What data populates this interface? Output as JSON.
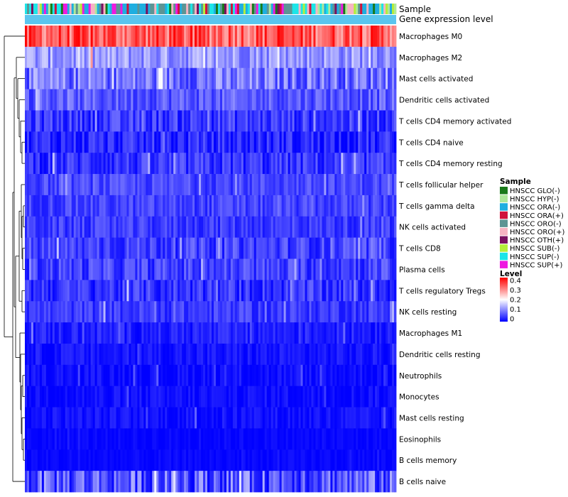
{
  "chart_data": {
    "type": "heatmap",
    "annotation_labels": [
      "Sample",
      "Gene expression level"
    ],
    "rows": [
      {
        "name": "Macrophages M0",
        "mean": 0.33,
        "spread": 0.07
      },
      {
        "name": "Macrophages M2",
        "mean": 0.12,
        "spread": 0.05
      },
      {
        "name": "Mast cells activated",
        "mean": 0.09,
        "spread": 0.06
      },
      {
        "name": "Dendritic cells activated",
        "mean": 0.07,
        "spread": 0.04
      },
      {
        "name": "T cells CD4 memory activated",
        "mean": 0.045,
        "spread": 0.04
      },
      {
        "name": "T cells CD4 naive",
        "mean": 0.03,
        "spread": 0.04
      },
      {
        "name": "T cells CD4 memory resting",
        "mean": 0.04,
        "spread": 0.04
      },
      {
        "name": "T cells follicular helper",
        "mean": 0.055,
        "spread": 0.03
      },
      {
        "name": "T cells gamma delta",
        "mean": 0.05,
        "spread": 0.03
      },
      {
        "name": "NK cells activated",
        "mean": 0.045,
        "spread": 0.03
      },
      {
        "name": "T cells CD8",
        "mean": 0.05,
        "spread": 0.04
      },
      {
        "name": "Plasma cells",
        "mean": 0.05,
        "spread": 0.04
      },
      {
        "name": "T cells regulatory  Tregs",
        "mean": 0.04,
        "spread": 0.04
      },
      {
        "name": "NK cells resting",
        "mean": 0.045,
        "spread": 0.03
      },
      {
        "name": "Macrophages M1",
        "mean": 0.025,
        "spread": 0.025
      },
      {
        "name": "Dendritic cells resting",
        "mean": 0.015,
        "spread": 0.02
      },
      {
        "name": "Neutrophils",
        "mean": 0.01,
        "spread": 0.02
      },
      {
        "name": "Monocytes",
        "mean": 0.01,
        "spread": 0.02
      },
      {
        "name": "Mast cells resting",
        "mean": 0.012,
        "spread": 0.02
      },
      {
        "name": "Eosinophils",
        "mean": 0.005,
        "spread": 0.01
      },
      {
        "name": "B cells memory",
        "mean": 0.005,
        "spread": 0.01
      },
      {
        "name": "B cells naive",
        "mean": 0.07,
        "spread": 0.07
      }
    ],
    "n_samples": 175,
    "sample_legend": {
      "title": "Sample",
      "items": [
        {
          "label": "HNSCC GLO(-)",
          "color": "#1a7a1a"
        },
        {
          "label": "HNSCC HYP(-)",
          "color": "#aee89a"
        },
        {
          "label": "HNSCC ORA(-)",
          "color": "#1faee0"
        },
        {
          "label": "HNSCC ORA(+)",
          "color": "#d0123c"
        },
        {
          "label": "HNSCC ORO(-)",
          "color": "#5d9494"
        },
        {
          "label": "HNSCC ORO(+)",
          "color": "#f6b3c2"
        },
        {
          "label": "HNSCC OTH(+)",
          "color": "#7a1060"
        },
        {
          "label": "HNSCC SUB(-)",
          "color": "#b5ee3a"
        },
        {
          "label": "HNSCC SUP(-)",
          "color": "#1ce5e8"
        },
        {
          "label": "HNSCC SUP(+)",
          "color": "#ee19e0"
        }
      ]
    },
    "level_legend": {
      "title": "Level",
      "ticks": [
        "0.4",
        "0.3",
        "0.2",
        "0.1",
        "0"
      ],
      "range": [
        0,
        0.4
      ],
      "colors": [
        "#0000ff",
        "#ffffff",
        "#ff0000"
      ]
    },
    "expression_bar_color": "#5bc5ee"
  }
}
